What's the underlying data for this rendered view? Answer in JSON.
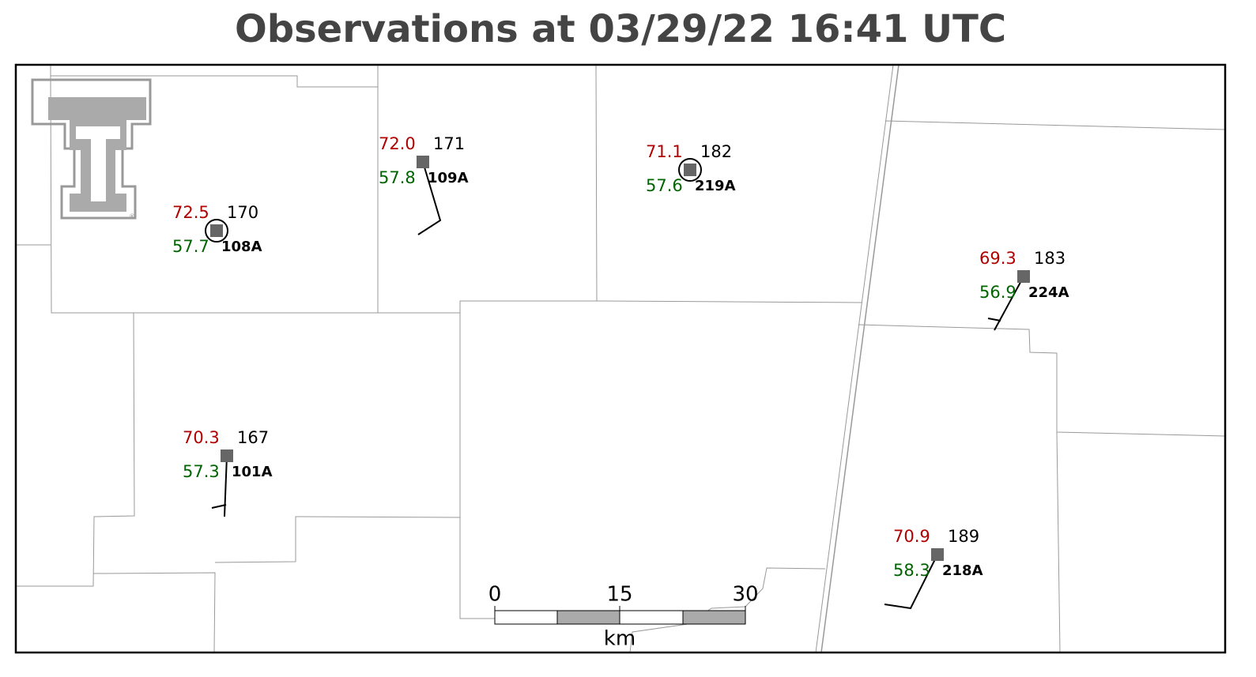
{
  "title": "Observations at 03/29/22 16:41 UTC",
  "stations": [
    {
      "temperature": "72.5",
      "dewpoint": "57.7",
      "value": "170",
      "id": "108A"
    },
    {
      "temperature": "72.0",
      "dewpoint": "57.8",
      "value": "171",
      "id": "109A"
    },
    {
      "temperature": "71.1",
      "dewpoint": "57.6",
      "value": "182",
      "id": "219A"
    },
    {
      "temperature": "69.3",
      "dewpoint": "56.9",
      "value": "183",
      "id": "224A"
    },
    {
      "temperature": "70.3",
      "dewpoint": "57.3",
      "value": "167",
      "id": "101A"
    },
    {
      "temperature": "70.9",
      "dewpoint": "58.3",
      "value": "189",
      "id": "218A"
    }
  ],
  "scale_bar": {
    "labels": [
      "0",
      "15",
      "30"
    ],
    "unit": "km"
  }
}
